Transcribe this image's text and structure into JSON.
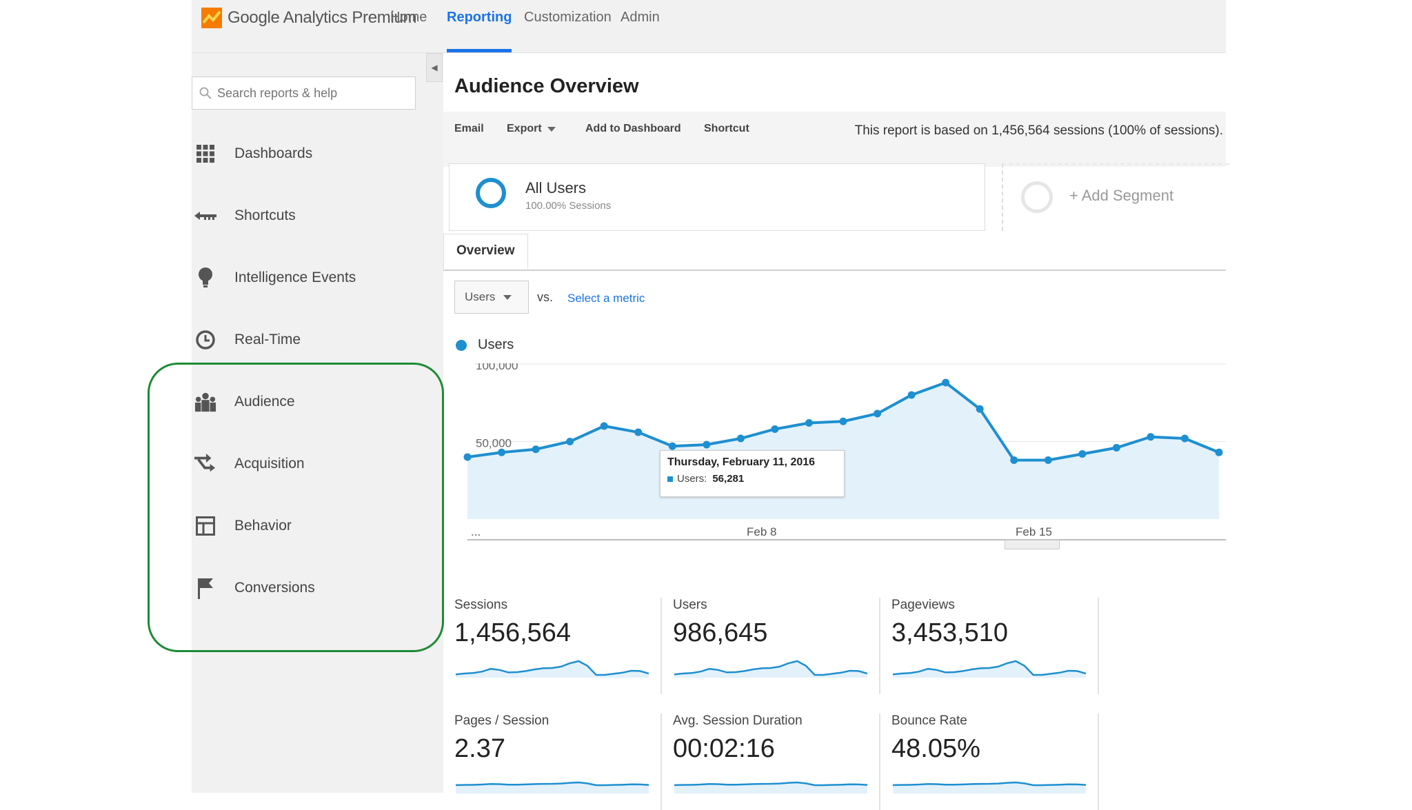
{
  "app": {
    "logo_text": "Google Analytics Premium",
    "brand_colors": {
      "accent": "#1a73e8",
      "series": "#1e8fd0",
      "highlight": "#1e8a34"
    }
  },
  "topnav": {
    "tabs": [
      {
        "label": "Home"
      },
      {
        "label": "Reporting",
        "active": true
      },
      {
        "label": "Customization"
      },
      {
        "label": "Admin"
      }
    ]
  },
  "sidebar": {
    "search_placeholder": "Search reports & help",
    "items": [
      {
        "label": "Dashboards",
        "icon": "grid-icon"
      },
      {
        "label": "Shortcuts",
        "icon": "shortcut-arrow-icon"
      },
      {
        "label": "Intelligence Events",
        "icon": "lightbulb-icon"
      },
      {
        "label": "Real-Time",
        "icon": "clock-icon"
      },
      {
        "label": "Audience",
        "icon": "people-icon"
      },
      {
        "label": "Acquisition",
        "icon": "acquisition-arrows-icon"
      },
      {
        "label": "Behavior",
        "icon": "layout-icon"
      },
      {
        "label": "Conversions",
        "icon": "flag-icon"
      }
    ]
  },
  "main": {
    "title": "Audience Overview",
    "toolbar": {
      "email": "Email",
      "export": "Export",
      "add_to_dashboard": "Add to Dashboard",
      "shortcut": "Shortcut"
    },
    "report_note": "This report is based on 1,456,564 sessions (100% of sessions).",
    "segment": {
      "name": "All Users",
      "sub": "100.00% Sessions"
    },
    "add_segment": "+ Add Segment",
    "tab_overview": "Overview",
    "metric_select": "Users",
    "vs": "vs.",
    "select_metric": "Select a metric",
    "legend_label": "Users",
    "tooltip": {
      "date": "Thursday, February 11, 2016",
      "metric": "Users:",
      "value": "56,281"
    },
    "tiles": [
      {
        "label": "Sessions",
        "value": "1,456,564"
      },
      {
        "label": "Users",
        "value": "986,645"
      },
      {
        "label": "Pageviews",
        "value": "3,453,510"
      },
      {
        "label": "Pages / Session",
        "value": "2.37"
      },
      {
        "label": "Avg. Session Duration",
        "value": "00:02:16"
      },
      {
        "label": "Bounce Rate",
        "value": "48.05%"
      }
    ]
  },
  "chart_data": {
    "type": "area",
    "series": [
      {
        "name": "Users",
        "values": [
          40000,
          43000,
          45000,
          50000,
          60000,
          56000,
          47000,
          48000,
          52000,
          58000,
          62000,
          63000,
          68000,
          80000,
          88000,
          71000,
          38000,
          38000,
          42000,
          46000,
          53000,
          52000,
          43000
        ]
      }
    ],
    "x_tick_labels": [
      "...",
      "Feb 8",
      "Feb 15"
    ],
    "y_tick_labels": [
      "100,000",
      "50,000"
    ],
    "ylim": [
      0,
      100000
    ],
    "grid": true
  }
}
